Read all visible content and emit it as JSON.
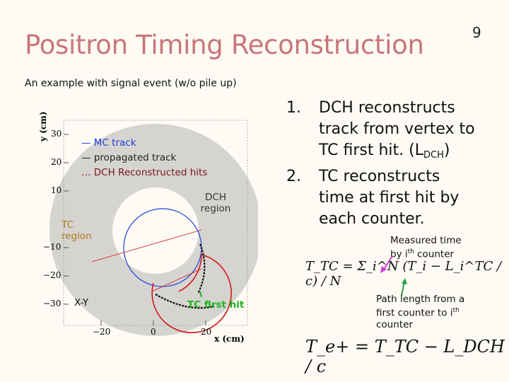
{
  "slide": {
    "title": "Positron Timing Reconstruction",
    "page_number": "9",
    "subtitle": "An example with signal event (w/o pile up)"
  },
  "figure": {
    "legend": {
      "mc_track": "— MC track",
      "propagated_track": "— propagated track",
      "dch_hits": "… DCH Reconstructed hits"
    },
    "labels": {
      "dch_region": "DCH region",
      "tc_region": "TC region",
      "view": "X-Y",
      "tc_first_hit": "TC first hit"
    },
    "axes": {
      "xlabel": "x (cm)",
      "ylabel": "y (cm)",
      "x_ticks": [
        "−20",
        "0",
        "20"
      ],
      "y_ticks": [
        "30",
        "20",
        "10",
        "−10",
        "−20",
        "−30"
      ]
    },
    "colors": {
      "dch": "#d6d4d1",
      "tc": "#e6c88a",
      "mc_track": "#1f3fd6",
      "propagated": "#d01818",
      "tc_hit": "#1db51d"
    }
  },
  "steps": {
    "item1": {
      "number": "1.",
      "line1": "DCH reconstructs",
      "line2": "track from vertex to",
      "line3_prefix": "TC first hit. (L",
      "line3_sub": "DCH",
      "line3_suffix": ")"
    },
    "item2": {
      "number": "2.",
      "line1": "TC reconstructs",
      "line2": "time at first hit by",
      "line3": "each counter."
    }
  },
  "notes": {
    "measured_line1": "Measured time",
    "measured_line2_prefix": "by i",
    "measured_line2_sup": "th",
    "measured_line2_suffix": " counter",
    "path_line1": "Path length from a",
    "path_line2_prefix": "first counter to i",
    "path_line2_sup": "th",
    "path_line3": "counter"
  },
  "formulas": {
    "ttc": "T_TC = Σ_i^N (T_i − L_i^TC / c) / N",
    "te": "T_e+ = T_TC − L_DCH / c"
  }
}
